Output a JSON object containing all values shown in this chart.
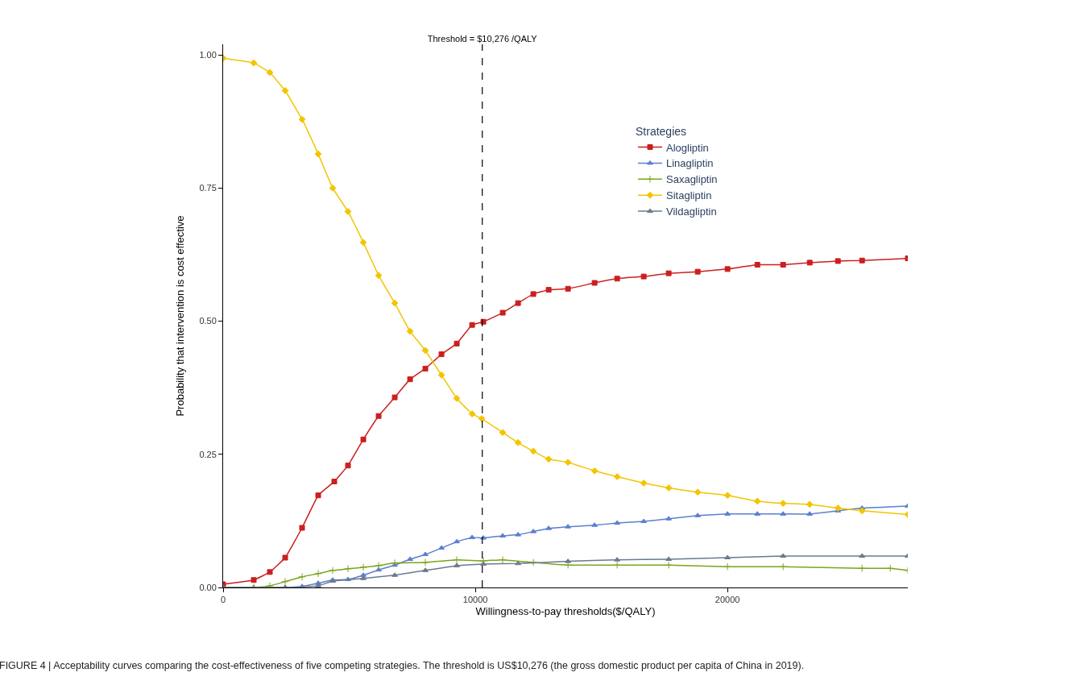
{
  "chart_data": {
    "type": "line",
    "xlabel": "Willingness-to-pay thresholds($/QALY)",
    "ylabel": "Probability that intervention is cost effective",
    "legend_title": "Strategies",
    "legend": "top right",
    "xlim": [
      0,
      27150
    ],
    "xticks": [
      0,
      10000,
      20000
    ],
    "ylim": [
      0,
      1.02
    ],
    "yticks": [
      {
        "value": 0,
        "label": "0.00"
      },
      {
        "value": 0.25,
        "label": "0.25"
      },
      {
        "value": 0.5,
        "label": "0.50"
      },
      {
        "value": 0.75,
        "label": "0.75"
      },
      {
        "value": 1,
        "label": "1.00"
      }
    ],
    "ref_lines": [
      {
        "axis": "x",
        "value": 10276,
        "label": "Threshold = $10,276 /QALY",
        "line_style": "dashed",
        "color": "#000000"
      }
    ],
    "annotations": [
      "FIGURE 4 | Acceptability curves comparing the cost-effectiveness of five competing strategies. The threshold is US$10,276 (the gross domestic product per capita of China in 2019)."
    ],
    "series": [
      {
        "name": "Alogliptin",
        "color": "#cc1f1f",
        "marker": "square",
        "x": [
          0,
          1214,
          1853,
          2460,
          3131,
          3770,
          4409,
          4952,
          5559,
          6166,
          6805,
          7413,
          8019,
          8658,
          9265,
          9873,
          10320,
          11087,
          11694,
          12301,
          12908,
          13675,
          14729,
          15624,
          16678,
          17668,
          18818,
          20000,
          21185,
          22205,
          23260,
          24378,
          25336,
          27150
        ],
        "values": [
          0.006,
          0.014,
          0.029,
          0.056,
          0.112,
          0.173,
          0.199,
          0.229,
          0.278,
          0.322,
          0.357,
          0.391,
          0.411,
          0.438,
          0.458,
          0.493,
          0.499,
          0.516,
          0.534,
          0.551,
          0.559,
          0.561,
          0.572,
          0.58,
          0.584,
          0.59,
          0.593,
          0.598,
          0.606,
          0.606,
          0.61,
          0.613,
          0.614,
          0.618
        ]
      },
      {
        "name": "Linagliptin",
        "color": "#5b7fd0",
        "marker": "triangle",
        "x": [
          0,
          1214,
          2460,
          3131,
          3770,
          4345,
          4952,
          5559,
          6166,
          6805,
          7413,
          8019,
          8658,
          9265,
          9873,
          10320,
          11087,
          11694,
          12301,
          12908,
          13675,
          14729,
          15624,
          16678,
          17668,
          18818,
          20000,
          21185,
          22205,
          23260,
          24378,
          25336,
          27150
        ],
        "values": [
          0,
          0,
          0,
          0.002,
          0.008,
          0.014,
          0.015,
          0.023,
          0.033,
          0.042,
          0.053,
          0.062,
          0.074,
          0.086,
          0.094,
          0.093,
          0.097,
          0.099,
          0.105,
          0.111,
          0.114,
          0.117,
          0.121,
          0.124,
          0.129,
          0.135,
          0.138,
          0.138,
          0.138,
          0.138,
          0.144,
          0.149,
          0.153
        ]
      },
      {
        "name": "Saxagliptin",
        "color": "#7aa51b",
        "marker": "cross",
        "x": [
          0,
          1214,
          1853,
          2460,
          3131,
          3770,
          4345,
          4952,
          5559,
          6166,
          6805,
          8019,
          9265,
          10320,
          11087,
          12301,
          13675,
          15624,
          17668,
          20000,
          22205,
          25336,
          26453,
          27150
        ],
        "values": [
          0,
          0,
          0.003,
          0.011,
          0.02,
          0.026,
          0.032,
          0.035,
          0.038,
          0.041,
          0.046,
          0.047,
          0.052,
          0.05,
          0.052,
          0.047,
          0.042,
          0.042,
          0.042,
          0.039,
          0.039,
          0.036,
          0.036,
          0.032
        ]
      },
      {
        "name": "Sitagliptin",
        "color": "#f2c500",
        "marker": "diamond",
        "x": [
          0,
          1214,
          1853,
          2460,
          3131,
          3770,
          4345,
          4952,
          5559,
          6166,
          6805,
          7413,
          8019,
          8658,
          9265,
          9873,
          10256,
          11087,
          11694,
          12301,
          12908,
          13675,
          14729,
          15624,
          16678,
          17668,
          18818,
          20000,
          21185,
          22205,
          23260,
          24378,
          25336,
          27150
        ],
        "values": [
          0.994,
          0.985,
          0.967,
          0.933,
          0.879,
          0.814,
          0.75,
          0.706,
          0.648,
          0.586,
          0.534,
          0.481,
          0.445,
          0.399,
          0.355,
          0.326,
          0.317,
          0.291,
          0.272,
          0.256,
          0.241,
          0.235,
          0.219,
          0.208,
          0.196,
          0.187,
          0.179,
          0.173,
          0.162,
          0.158,
          0.156,
          0.149,
          0.144,
          0.137
        ]
      },
      {
        "name": "Vildagliptin",
        "color": "#6b7a8f",
        "marker": "triangle",
        "x": [
          0,
          2460,
          3770,
          4345,
          5559,
          6805,
          8019,
          9265,
          10320,
          11694,
          13675,
          15624,
          17668,
          20000,
          22205,
          25336,
          27150
        ],
        "values": [
          0,
          0,
          0.003,
          0.012,
          0.017,
          0.023,
          0.032,
          0.041,
          0.044,
          0.045,
          0.049,
          0.052,
          0.053,
          0.056,
          0.059,
          0.059,
          0.059
        ]
      }
    ]
  }
}
